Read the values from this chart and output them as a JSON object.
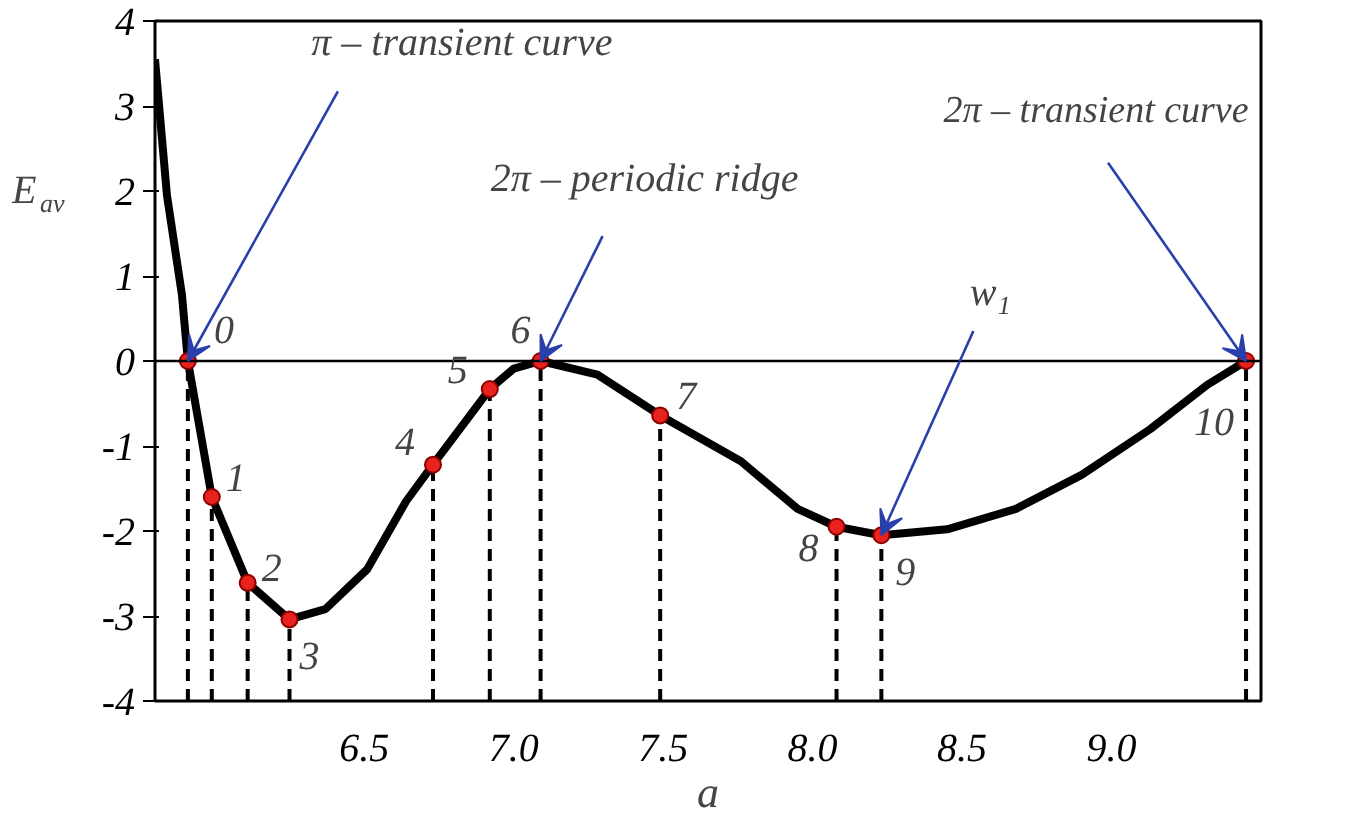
{
  "chart_data": {
    "type": "line",
    "xlabel": "a",
    "ylabel": "E$_{av}$",
    "xlim": [
      5.8,
      9.5
    ],
    "ylim": [
      -4,
      4
    ],
    "xticks": [
      6.5,
      {
        "value": 7,
        "label": "7.0"
      },
      7.5,
      {
        "value": 8,
        "label": "8.0"
      },
      8.5,
      {
        "value": 9,
        "label": "9.0"
      }
    ],
    "yticks": [
      -4,
      -3,
      -2,
      -1,
      0,
      1,
      2,
      3,
      4
    ],
    "grid": false,
    "series": [
      {
        "color": "#000000",
        "line_style": "solid",
        "x": [
          5.8,
          5.84,
          5.89,
          5.91,
          5.99,
          6.11,
          6.25,
          6.37,
          6.51,
          6.64,
          6.73,
          6.92,
          7.0,
          7.09,
          7.28,
          7.49,
          7.76,
          7.95,
          8.08,
          8.23,
          8.45,
          8.68,
          8.9,
          9.13,
          9.32,
          9.45
        ],
        "values": [
          3.55,
          1.95,
          0.78,
          0,
          -1.6,
          -2.61,
          -3.04,
          -2.92,
          -2.45,
          -1.65,
          -1.22,
          -0.33,
          -0.09,
          0,
          -0.16,
          -0.64,
          -1.18,
          -1.74,
          -1.95,
          -2.05,
          -1.98,
          -1.74,
          -1.34,
          -0.8,
          -0.28,
          0
        ]
      },
      {
        "type": "lollipop",
        "color": "#e8231f",
        "line_style": "dashed",
        "marker": "circle",
        "x": [
          5.91,
          5.99,
          6.11,
          6.25,
          6.73,
          6.92,
          7.09,
          7.49,
          8.08,
          8.23,
          9.45
        ],
        "values": [
          0,
          -1.6,
          -2.61,
          -3.04,
          -1.22,
          -0.33,
          0,
          -0.64,
          -1.95,
          -2.05,
          0
        ]
      }
    ],
    "ref_lines": [
      {
        "axis": "y",
        "value": 0,
        "color": "#000000"
      }
    ],
    "annotations": [
      {
        "text": "π – transient curve",
        "x": 5.91,
        "y": 0
      },
      {
        "text": "2π – periodic ridge",
        "x": 7.09,
        "y": 0
      },
      {
        "text": "w$_{1}$",
        "x": 8.23,
        "y": -2.05
      },
      {
        "text": "2π – transient curve",
        "x": 9.45,
        "y": 0
      },
      {
        "text": "0",
        "x": 5.91,
        "y": 0
      },
      {
        "text": "1",
        "x": 5.99,
        "y": -1.6
      },
      {
        "text": "2",
        "x": 6.11,
        "y": -2.61
      },
      {
        "text": "3",
        "x": 6.25,
        "y": -3.04
      },
      {
        "text": "4",
        "x": 6.73,
        "y": -1.22
      },
      {
        "text": "5",
        "x": 6.92,
        "y": -0.33
      },
      {
        "text": "6",
        "x": 7.09,
        "y": 0
      },
      {
        "text": "7",
        "x": 7.49,
        "y": -0.64
      },
      {
        "text": "8",
        "x": 8.08,
        "y": -1.95
      },
      {
        "text": "9",
        "x": 8.23,
        "y": -2.05
      },
      {
        "text": "10",
        "x": 9.45,
        "y": 0
      }
    ]
  }
}
